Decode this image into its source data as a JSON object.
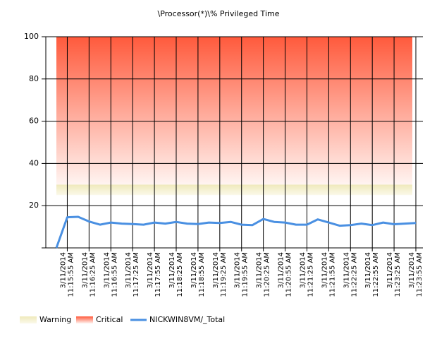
{
  "chart_data": {
    "type": "line",
    "title": "\\Processor(*)\\% Privileged Time",
    "categories": [
      null,
      [
        "3/11/2014",
        "11:15:55 AM"
      ],
      null,
      [
        "3/11/2014",
        "11:16:25 AM"
      ],
      null,
      [
        "3/11/2014",
        "11:16:55 AM"
      ],
      null,
      [
        "3/11/2014",
        "11:17:25 AM"
      ],
      null,
      [
        "3/11/2014",
        "11:17:55 AM"
      ],
      null,
      [
        "3/11/2014",
        "11:18:25 AM"
      ],
      null,
      [
        "3/11/2014",
        "11:18:55 AM"
      ],
      null,
      [
        "3/11/2014",
        "11:19:25 AM"
      ],
      null,
      [
        "3/11/2014",
        "11:19:55 AM"
      ],
      null,
      [
        "3/11/2014",
        "11:20:25 AM"
      ],
      null,
      [
        "3/11/2014",
        "11:20:55 AM"
      ],
      null,
      [
        "3/11/2014",
        "11:21:25 AM"
      ],
      null,
      [
        "3/11/2014",
        "11:21:55 AM"
      ],
      null,
      [
        "3/11/2014",
        "11:22:25 AM"
      ],
      null,
      [
        "3/11/2014",
        "11:22:55 AM"
      ],
      null,
      [
        "3/11/2014",
        "11:23:25 AM"
      ],
      null,
      [
        "3/11/2014",
        "11:23:55 AM"
      ]
    ],
    "series": [
      {
        "name": "NICKWIN8VM/_Total",
        "color": "#4a90e2",
        "values": [
          0,
          14.5,
          14.7,
          12.5,
          11,
          12,
          11.5,
          11.3,
          11,
          12,
          11.5,
          12.3,
          11.5,
          11.3,
          12,
          11.8,
          12.3,
          11,
          10.8,
          13.7,
          12.3,
          12,
          11,
          11,
          13.5,
          12,
          10.5,
          10.8,
          11.5,
          10.8,
          12,
          11.2,
          11.5,
          11.8
        ]
      }
    ],
    "bands": [
      {
        "name": "Warning",
        "from": 25,
        "to": 30,
        "color": "#efe9bb"
      },
      {
        "name": "Critical",
        "from": 30,
        "to": 100,
        "color": "#ff5a3c"
      }
    ],
    "ylim": [
      0,
      100
    ],
    "yticks": [
      20,
      40,
      60,
      80,
      100
    ],
    "grid": true
  }
}
